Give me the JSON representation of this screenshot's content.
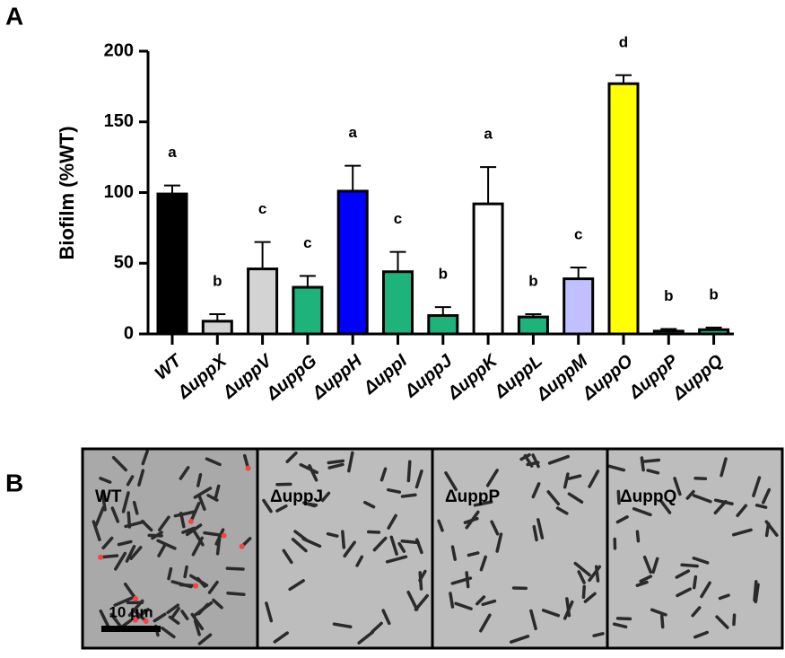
{
  "panel_labels": [
    "A",
    "B"
  ],
  "chart_data": {
    "type": "bar",
    "y_label": "Biofilm (%WT)",
    "categories": [
      "WT",
      "ΔuppX",
      "ΔuppV",
      "ΔuppG",
      "ΔuppH",
      "ΔuppI",
      "ΔuppJ",
      "ΔuppK",
      "ΔuppL",
      "ΔuppM",
      "ΔuppO",
      "ΔuppP",
      "ΔuppQ"
    ],
    "values": [
      99,
      9,
      46,
      33,
      101,
      44,
      13,
      92,
      12,
      39,
      177,
      2,
      3
    ],
    "errors": [
      6,
      5,
      19,
      8,
      18,
      14,
      6,
      26,
      2,
      8,
      6,
      1.5,
      1.5
    ],
    "colors": [
      "#000000",
      "#d3d3d3",
      "#d3d3d3",
      "#1db37a",
      "#0000ff",
      "#1db37a",
      "#1db37a",
      "#ffffff",
      "#1db37a",
      "#c0c0ff",
      "#ffff00",
      "#1db37a",
      "#1db37a"
    ],
    "significance": [
      "a",
      "b",
      "c",
      "c",
      "a",
      "c",
      "b",
      "a",
      "b",
      "c",
      "d",
      "b",
      "b"
    ],
    "ylim": [
      0,
      200
    ],
    "yticks": [
      0,
      50,
      100,
      150,
      200
    ],
    "grid": false
  },
  "micrographs": {
    "labels": [
      "WT",
      "ΔuppJ",
      "ΔuppP",
      "ΔuppQ"
    ],
    "scale_bar": "10 μm"
  }
}
